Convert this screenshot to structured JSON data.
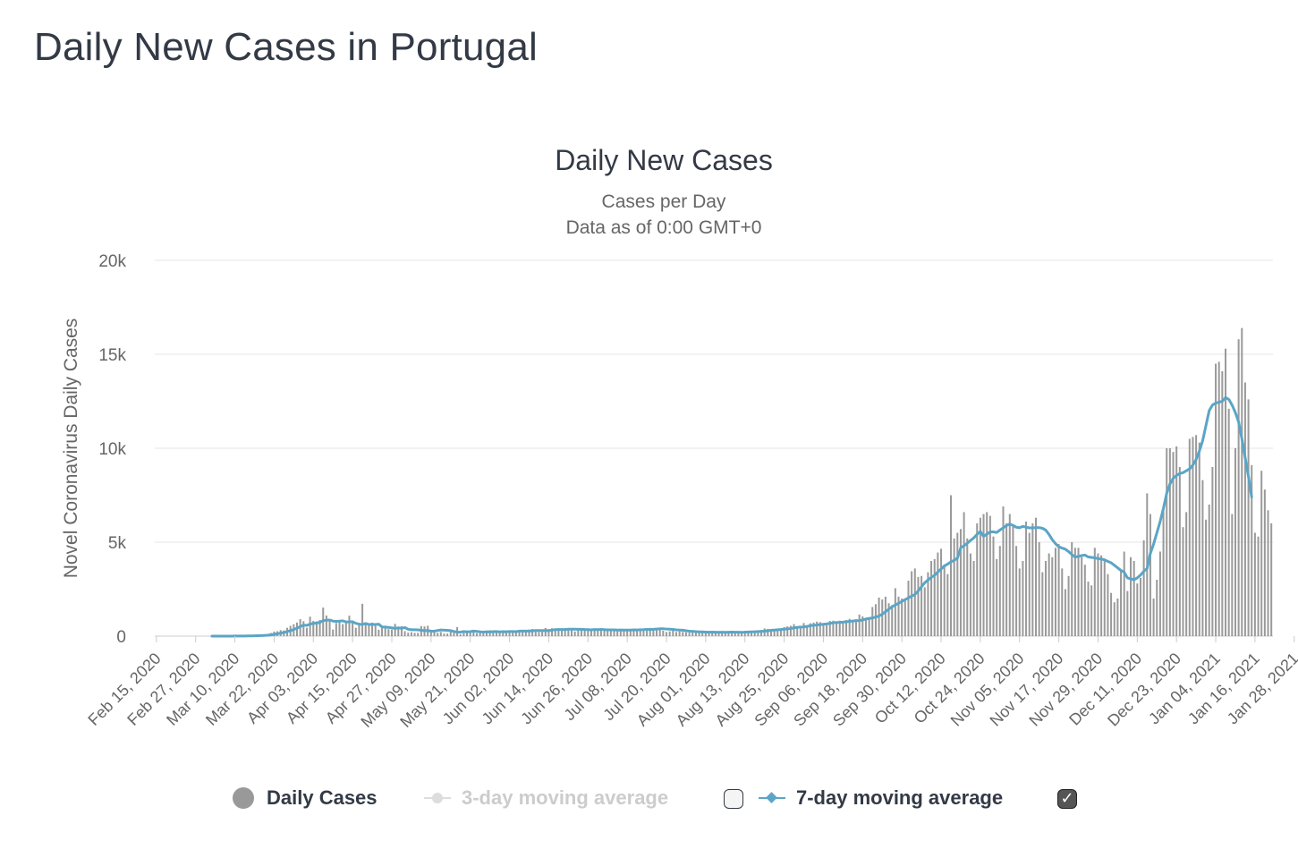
{
  "page": {
    "title": "Daily New Cases in Portugal"
  },
  "colors": {
    "bars": "#9a9a9a",
    "line": "#5aa5c6",
    "grid": "#e6e6e6",
    "title": "#333a46",
    "subtitle": "#666666",
    "axis_text": "#666666",
    "legend_active": "#333a46",
    "legend_inactive": "#cccccc"
  },
  "legend": {
    "daily": "Daily Cases",
    "ma3": "3-day moving average",
    "ma7": "7-day moving average",
    "ma3_checked": false,
    "ma7_checked": true,
    "check_glyph": "✓"
  },
  "chart_data": {
    "type": "bar",
    "title": "Daily New Cases",
    "subtitle_lines": [
      "Cases per Day",
      "Data as of 0:00 GMT+0"
    ],
    "ylabel": "Novel Coronavirus Daily Cases",
    "xlabel": "",
    "ylim": [
      0,
      20000
    ],
    "y_ticks": [
      0,
      5000,
      10000,
      15000,
      20000
    ],
    "y_tick_labels": [
      "0",
      "5k",
      "10k",
      "15k",
      "20k"
    ],
    "grid": true,
    "legend_position": "bottom-center",
    "start_date": "2020-02-15",
    "x_tick_labels": [
      "Feb 15, 2020",
      "Feb 27, 2020",
      "Mar 10, 2020",
      "Mar 22, 2020",
      "Apr 03, 2020",
      "Apr 15, 2020",
      "Apr 27, 2020",
      "May 09, 2020",
      "May 21, 2020",
      "Jun 02, 2020",
      "Jun 14, 2020",
      "Jun 26, 2020",
      "Jul 08, 2020",
      "Jul 20, 2020",
      "Aug 01, 2020",
      "Aug 13, 2020",
      "Aug 25, 2020",
      "Sep 06, 2020",
      "Sep 18, 2020",
      "Sep 30, 2020",
      "Oct 12, 2020",
      "Oct 24, 2020",
      "Nov 05, 2020",
      "Nov 17, 2020",
      "Nov 29, 2020",
      "Dec 11, 2020",
      "Dec 23, 2020",
      "Jan 04, 2021",
      "Jan 16, 2021",
      "Jan 28, 2021"
    ],
    "series": [
      {
        "name": "Daily Cases",
        "type": "bar",
        "values": [
          0,
          0,
          0,
          0,
          0,
          0,
          0,
          0,
          0,
          0,
          0,
          0,
          0,
          0,
          0,
          0,
          2,
          0,
          0,
          2,
          0,
          2,
          4,
          8,
          10,
          11,
          11,
          10,
          15,
          30,
          41,
          86,
          64,
          78,
          112,
          169,
          245,
          260,
          320,
          302,
          443,
          549,
          633,
          724,
          902,
          792,
          446,
          1035,
          808,
          783,
          852,
          1516,
          1097,
          911,
          349,
          699,
          815,
          638,
          750,
          1089,
          690,
          443,
          646,
          1722,
          737,
          614,
          720,
          580,
          342,
          521,
          553,
          371,
          345,
          655,
          422,
          533,
          264,
          183,
          205,
          174,
          175,
          533,
          515,
          553,
          256,
          270,
          173,
          218,
          137,
          134,
          226,
          181,
          484,
          97,
          163,
          295,
          186,
          219,
          150,
          294,
          188,
          285,
          316,
          251,
          227,
          193,
          252,
          208,
          212,
          295,
          311,
          308,
          282,
          299,
          352,
          382,
          271,
          221,
          356,
          434,
          373,
          421,
          322,
          337,
          358,
          356,
          382,
          306,
          247,
          336,
          381,
          345,
          410,
          402,
          379,
          325,
          361,
          338,
          330,
          276,
          331,
          322,
          377,
          371,
          315,
          362,
          365,
          359,
          304,
          371,
          373,
          440,
          395,
          422,
          337,
          286,
          218,
          254,
          329,
          219,
          252,
          223,
          198,
          179,
          213,
          206,
          189,
          204,
          162,
          217,
          185,
          202,
          265,
          178,
          203,
          216,
          209,
          213,
          224,
          206,
          288,
          271,
          279,
          275,
          298,
          330,
          409,
          382,
          352,
          375,
          327,
          410,
          476,
          517,
          550,
          638,
          470,
          474,
          696,
          550,
          685,
          720,
          770,
          744,
          620,
          580,
          808,
          822,
          764,
          823,
          735,
          850,
          920,
          780,
          900,
          1150,
          1050,
          980,
          890,
          1550,
          1700,
          2050,
          1950,
          2100,
          1750,
          1650,
          2550,
          2100,
          2000,
          1900,
          2950,
          3450,
          3600,
          3150,
          3200,
          2600,
          3400,
          4000,
          4100,
          4450,
          4650,
          3800,
          3300,
          7500,
          5200,
          5500,
          5700,
          6600,
          5200,
          4400,
          4000,
          6000,
          6300,
          6500,
          6600,
          6400,
          5300,
          4100,
          4800,
          6900,
          6000,
          6500,
          5900,
          4800,
          3600,
          4000,
          6100,
          5500,
          6000,
          6300,
          5000,
          3400,
          4000,
          4400,
          4200,
          4700,
          4900,
          3600,
          2500,
          3200,
          5000,
          4700,
          4700,
          4200,
          3800,
          2900,
          2700,
          4700,
          4400,
          4300,
          4100,
          3300,
          2300,
          1800,
          2000,
          3500,
          4500,
          2400,
          4200,
          4000,
          2800,
          3100,
          5100,
          7600,
          6500,
          2000,
          3000,
          4500,
          6800,
          10000,
          10000,
          9800,
          10100,
          9000,
          5800,
          6600,
          10500,
          10600,
          10700,
          10300,
          8300,
          6200,
          7000,
          9000,
          14500,
          14600,
          14100,
          15300,
          12100,
          6500,
          10000,
          15800,
          16400,
          13500,
          12600,
          9100,
          5500,
          5300,
          8800,
          7800,
          6700,
          6000
        ]
      },
      {
        "name": "7-day moving average",
        "type": "line",
        "values": [
          0,
          0,
          0,
          0,
          0,
          0,
          0,
          0,
          0,
          0,
          0,
          0,
          0,
          0,
          0,
          0,
          0,
          0,
          0,
          1,
          1,
          1,
          1,
          3,
          4,
          5,
          6,
          7,
          9,
          12,
          17,
          24,
          30,
          37,
          48,
          66,
          94,
          123,
          158,
          189,
          245,
          289,
          352,
          423,
          506,
          582,
          574,
          637,
          672,
          697,
          732,
          824,
          847,
          859,
          800,
          786,
          795,
          813,
          756,
          755,
          766,
          681,
          638,
          622,
          671,
          621,
          623,
          622,
          635,
          491,
          481,
          463,
          440,
          411,
          439,
          414,
          455,
          366,
          340,
          337,
          331,
          309,
          288,
          298,
          261,
          263,
          300,
          328,
          318,
          308,
          292,
          246,
          217,
          211,
          243,
          227,
          237,
          266,
          252,
          229,
          217,
          231,
          222,
          238,
          242,
          228,
          236,
          231,
          245,
          244,
          238,
          265,
          266,
          269,
          268,
          278,
          295,
          300,
          296,
          291,
          292,
          318,
          348,
          354,
          349,
          349,
          367,
          372,
          367,
          364,
          363,
          349,
          344,
          333,
          351,
          348,
          357,
          344,
          336,
          332,
          332,
          324,
          328,
          322,
          322,
          323,
          334,
          330,
          337,
          343,
          355,
          354,
          362,
          377,
          390,
          390,
          378,
          367,
          356,
          333,
          323,
          314,
          284,
          261,
          257,
          241,
          228,
          225,
          217,
          208,
          212,
          210,
          202,
          211,
          203,
          208,
          216,
          209,
          208,
          203,
          210,
          222,
          227,
          234,
          244,
          251,
          263,
          285,
          307,
          321,
          338,
          350,
          369,
          386,
          402,
          440,
          467,
          480,
          488,
          516,
          556,
          577,
          592,
          615,
          632,
          651,
          676,
          707,
          729,
          730,
          745,
          767,
          782,
          806,
          822,
          826,
          860,
          909,
          940,
          969,
          1017,
          1071,
          1164,
          1302,
          1433,
          1563,
          1657,
          1745,
          1846,
          1944,
          2034,
          2127,
          2219,
          2405,
          2620,
          2842,
          2986,
          3125,
          3237,
          3414,
          3571,
          3738,
          3832,
          3954,
          4035,
          4154,
          4701,
          4809,
          4937,
          5094,
          5230,
          5414,
          5571,
          5307,
          5429,
          5546,
          5546,
          5518,
          5647,
          5761,
          5889,
          5963,
          5893,
          5797,
          5766,
          5841,
          5793,
          5764,
          5763,
          5775,
          5776,
          5739,
          5643,
          5414,
          5133,
          4918,
          4755,
          4688,
          4626,
          4500,
          4343,
          4207,
          4243,
          4286,
          4314,
          4214,
          4193,
          4168,
          4125,
          4103,
          4060,
          3976,
          3903,
          3768,
          3633,
          3500,
          3400,
          3100,
          3050,
          3000,
          3100,
          3250,
          3450,
          3600,
          4400,
          4900,
          5500,
          6100,
          6800,
          7600,
          8100,
          8400,
          8550,
          8650,
          8700,
          8800,
          8900,
          9100,
          9400,
          9850,
          10400,
          11200,
          12000,
          12300,
          12400,
          12450,
          12500,
          12700,
          12600,
          12300,
          11900,
          11400,
          10500,
          9500,
          8500,
          7400
        ]
      }
    ]
  }
}
